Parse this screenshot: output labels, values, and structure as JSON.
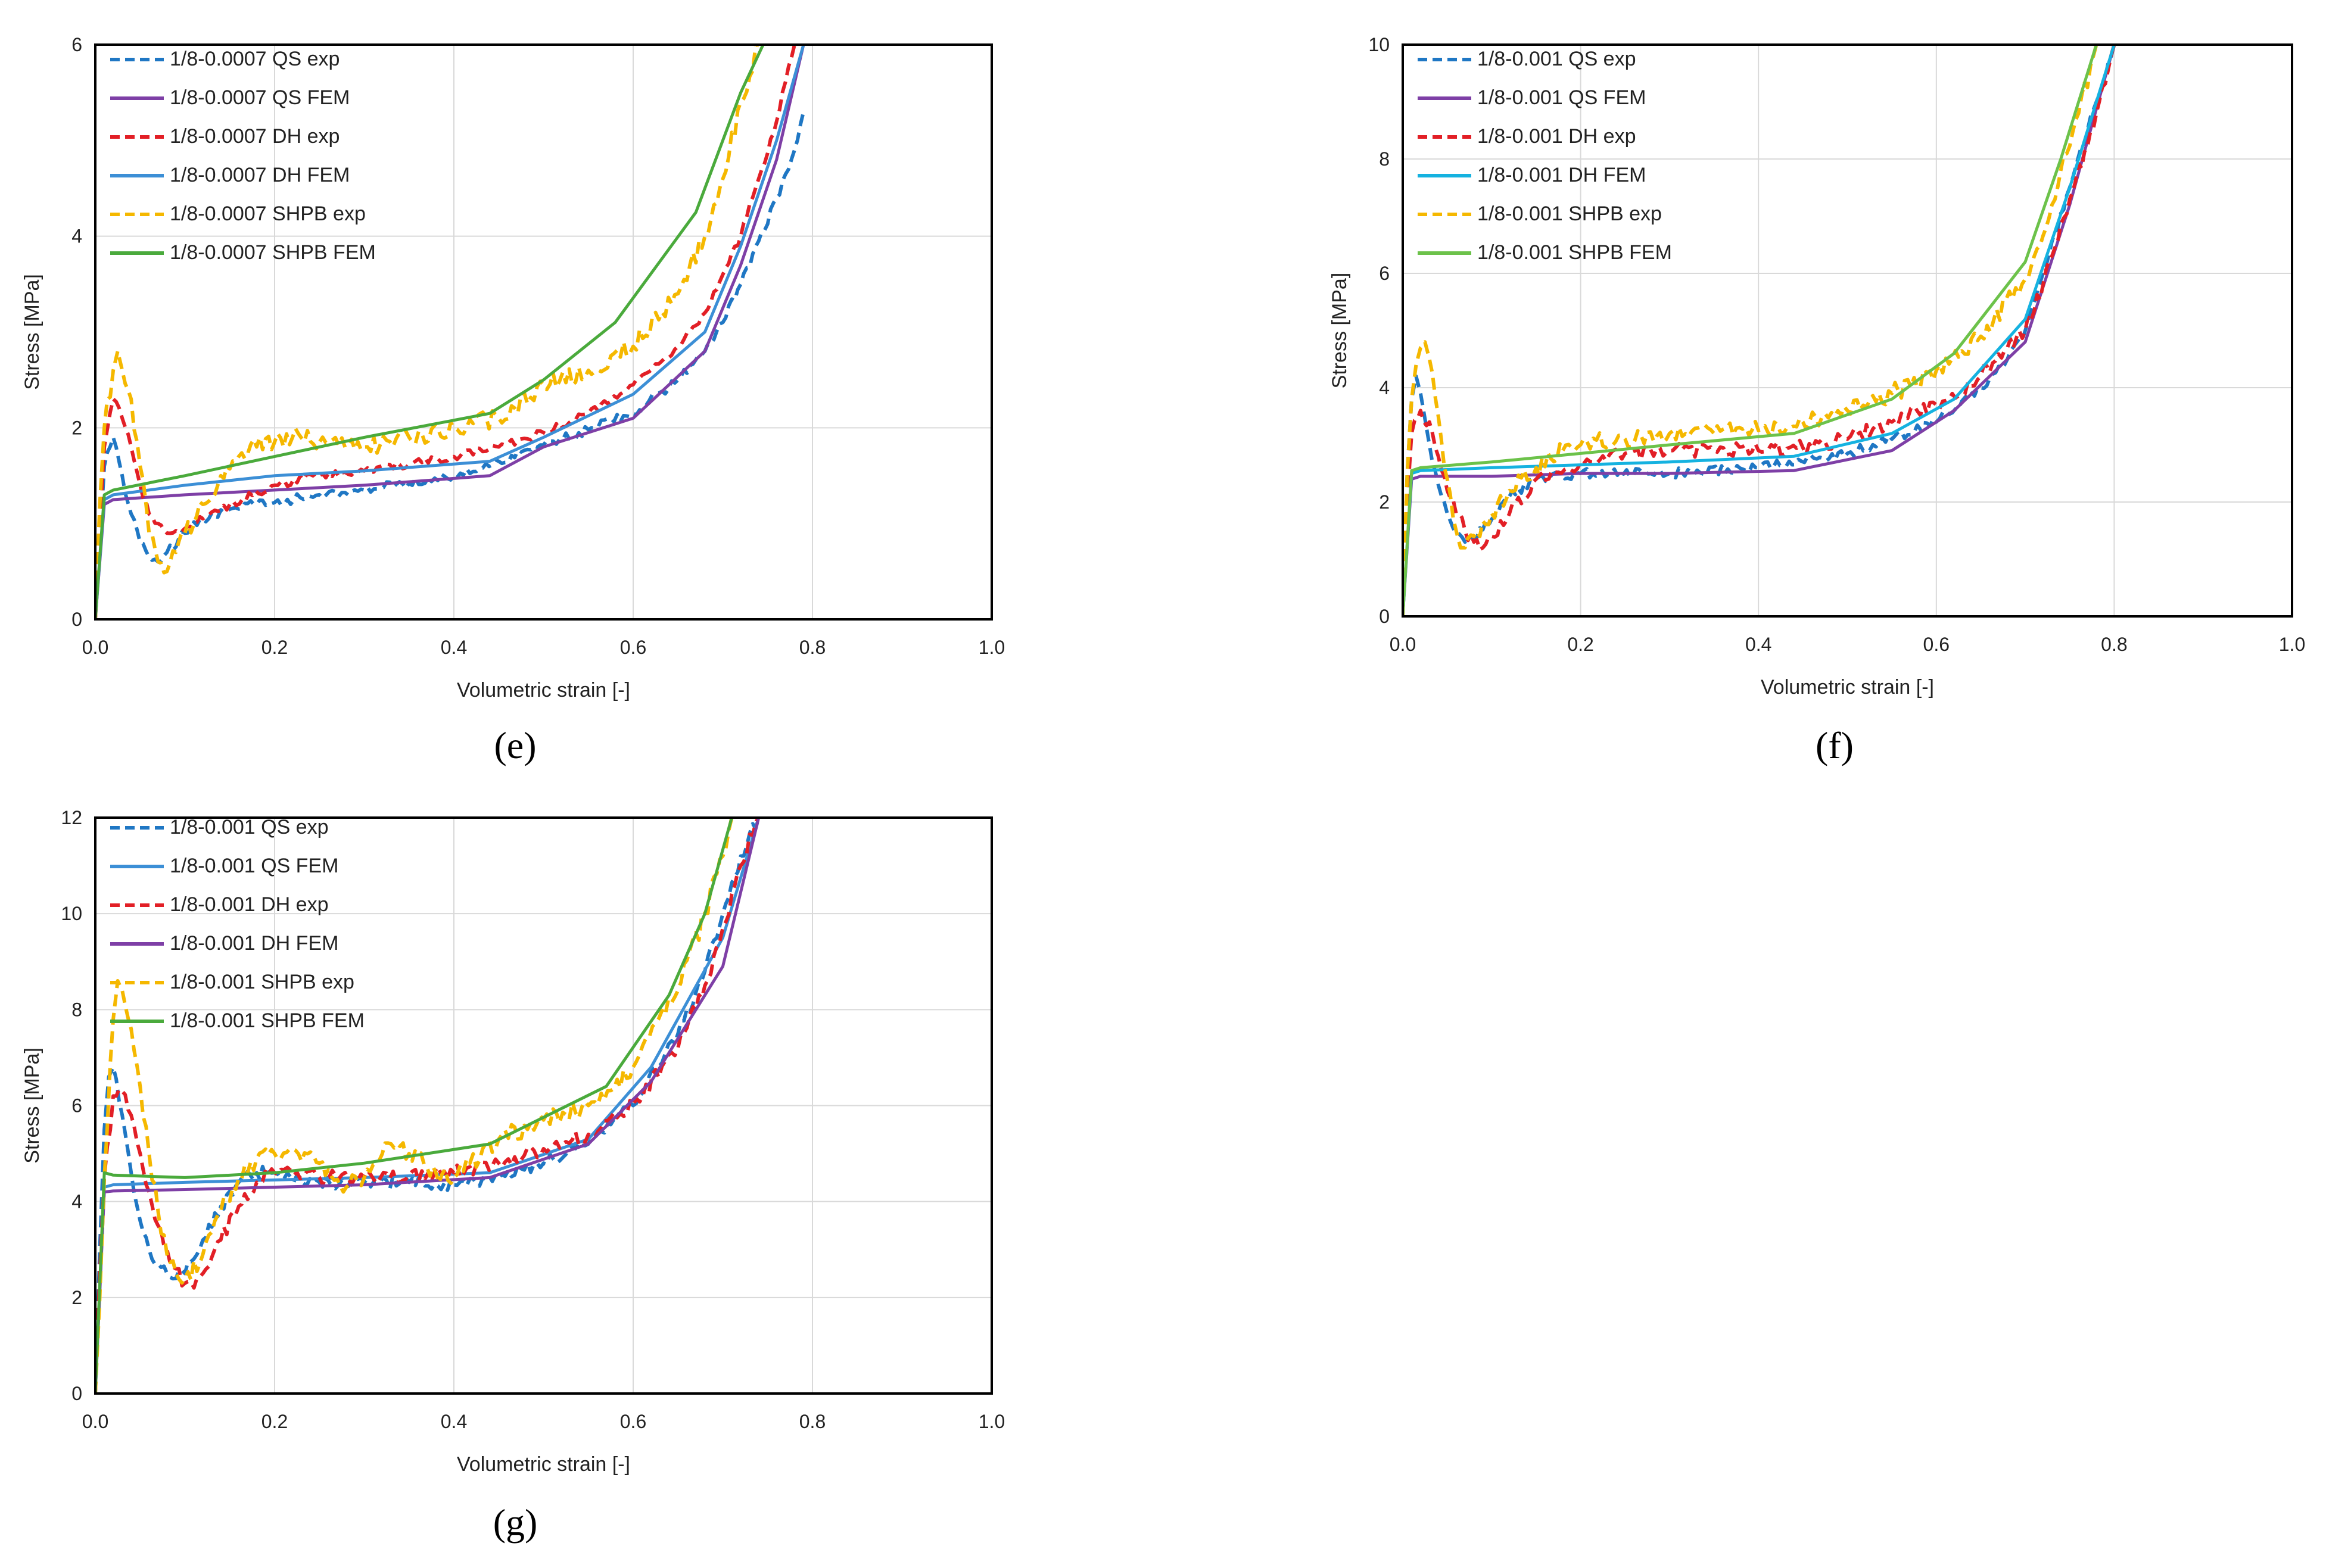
{
  "chart_data": [
    {
      "panel": "(e)",
      "type": "line",
      "xlabel": "Volumetric strain [-]",
      "ylabel": "Stress [MPa]",
      "xlim": [
        0,
        1.0
      ],
      "ylim": [
        0,
        6
      ],
      "xticks": [
        "0.0",
        "0.2",
        "0.4",
        "0.6",
        "0.8",
        "1.0"
      ],
      "yticks": [
        "0",
        "2",
        "4",
        "6"
      ],
      "series": [
        {
          "name": "1/8-0.0007 QS exp",
          "color": "#1f77c4",
          "dash": "dashed",
          "noise": 0.05,
          "x": [
            0,
            0.005,
            0.01,
            0.02,
            0.03,
            0.04,
            0.05,
            0.06,
            0.07,
            0.08,
            0.1,
            0.12,
            0.15,
            0.18,
            0.2,
            0.25,
            0.3,
            0.35,
            0.4,
            0.45,
            0.5,
            0.55,
            0.6,
            0.65,
            0.68,
            0.7,
            0.72,
            0.74,
            0.76,
            0.78,
            0.79
          ],
          "y": [
            0,
            0.8,
            1.6,
            1.9,
            1.5,
            1.1,
            0.8,
            0.65,
            0.6,
            0.7,
            0.9,
            1.05,
            1.15,
            1.2,
            1.22,
            1.3,
            1.35,
            1.42,
            1.5,
            1.65,
            1.82,
            1.98,
            2.15,
            2.5,
            2.8,
            3.1,
            3.5,
            3.95,
            4.4,
            4.9,
            5.3
          ]
        },
        {
          "name": "1/8-0.0007 QS FEM",
          "color": "#7e3fa6",
          "dash": "solid",
          "noise": 0,
          "x": [
            0,
            0.01,
            0.02,
            0.1,
            0.2,
            0.3,
            0.44,
            0.5,
            0.6,
            0.68,
            0.72,
            0.76,
            0.79
          ],
          "y": [
            0,
            1.2,
            1.25,
            1.3,
            1.35,
            1.4,
            1.5,
            1.8,
            2.1,
            2.8,
            3.7,
            4.8,
            6.0
          ]
        },
        {
          "name": "1/8-0.0007 DH exp",
          "color": "#e21f26",
          "dash": "dashed",
          "noise": 0.04,
          "x": [
            0,
            0.005,
            0.01,
            0.02,
            0.03,
            0.04,
            0.05,
            0.06,
            0.07,
            0.08,
            0.1,
            0.12,
            0.15,
            0.2,
            0.25,
            0.3,
            0.35,
            0.4,
            0.45,
            0.5,
            0.55,
            0.6,
            0.65,
            0.68,
            0.7,
            0.72,
            0.74,
            0.76,
            0.78
          ],
          "y": [
            0,
            1.0,
            1.8,
            2.3,
            2.1,
            1.8,
            1.4,
            1.1,
            1.0,
            0.9,
            0.95,
            1.05,
            1.2,
            1.4,
            1.5,
            1.55,
            1.62,
            1.7,
            1.8,
            1.95,
            2.15,
            2.45,
            2.85,
            3.2,
            3.6,
            4.0,
            4.6,
            5.2,
            6.0
          ]
        },
        {
          "name": "1/8-0.0007 DH FEM",
          "color": "#3c8fd6",
          "dash": "solid",
          "noise": 0,
          "x": [
            0,
            0.01,
            0.02,
            0.1,
            0.2,
            0.3,
            0.44,
            0.5,
            0.6,
            0.68,
            0.72,
            0.76,
            0.79
          ],
          "y": [
            0,
            1.25,
            1.3,
            1.4,
            1.5,
            1.55,
            1.65,
            1.9,
            2.35,
            3.0,
            3.9,
            5.0,
            6.0
          ]
        },
        {
          "name": "1/8-0.0007 SHPB exp",
          "color": "#f5b800",
          "dash": "dashed",
          "noise": 0.1,
          "x": [
            0,
            0.005,
            0.01,
            0.02,
            0.025,
            0.03,
            0.04,
            0.05,
            0.06,
            0.07,
            0.08,
            0.09,
            0.1,
            0.12,
            0.14,
            0.16,
            0.18,
            0.2,
            0.22,
            0.25,
            0.3,
            0.35,
            0.4,
            0.45,
            0.5,
            0.55,
            0.6,
            0.65,
            0.68,
            0.7,
            0.72,
            0.74
          ],
          "y": [
            0,
            1.2,
            2.0,
            2.6,
            2.8,
            2.6,
            2.3,
            1.6,
            0.9,
            0.6,
            0.5,
            0.7,
            0.9,
            1.2,
            1.5,
            1.7,
            1.8,
            1.85,
            1.9,
            1.85,
            1.8,
            1.9,
            2.0,
            2.1,
            2.45,
            2.6,
            2.85,
            3.4,
            4.0,
            4.6,
            5.4,
            6.0
          ]
        },
        {
          "name": "1/8-0.0007 SHPB FEM",
          "color": "#4aaa3c",
          "dash": "solid",
          "noise": 0,
          "x": [
            0,
            0.01,
            0.02,
            0.1,
            0.2,
            0.3,
            0.44,
            0.5,
            0.58,
            0.67,
            0.72,
            0.745
          ],
          "y": [
            0,
            1.3,
            1.35,
            1.5,
            1.7,
            1.9,
            2.15,
            2.5,
            3.1,
            4.25,
            5.5,
            6.0
          ]
        }
      ]
    },
    {
      "panel": "(f)",
      "type": "line",
      "xlabel": "Volumetric strain [-]",
      "ylabel": "Stress [MPa]",
      "xlim": [
        0,
        1.0
      ],
      "ylim": [
        0,
        10
      ],
      "xticks": [
        "0.0",
        "0.2",
        "0.4",
        "0.6",
        "0.8",
        "1.0"
      ],
      "yticks": [
        "0",
        "2",
        "4",
        "6",
        "8",
        "10"
      ],
      "series": [
        {
          "name": "1/8-0.001 QS exp",
          "color": "#1f77c4",
          "dash": "dashed",
          "noise": 0.05,
          "x": [
            0,
            0.005,
            0.01,
            0.015,
            0.02,
            0.03,
            0.04,
            0.05,
            0.06,
            0.07,
            0.08,
            0.1,
            0.12,
            0.15,
            0.2,
            0.3,
            0.4,
            0.5,
            0.55,
            0.6,
            0.65,
            0.68,
            0.7,
            0.72,
            0.75,
            0.78,
            0.8
          ],
          "y": [
            0,
            2.5,
            3.8,
            4.2,
            3.9,
            3.0,
            2.3,
            1.8,
            1.45,
            1.3,
            1.35,
            1.7,
            2.1,
            2.4,
            2.5,
            2.5,
            2.6,
            2.85,
            3.1,
            3.4,
            4.0,
            4.5,
            5.0,
            6.0,
            7.5,
            9.0,
            10.0
          ]
        },
        {
          "name": "1/8-0.001 QS FEM",
          "color": "#7e3fa6",
          "dash": "solid",
          "noise": 0,
          "x": [
            0,
            0.01,
            0.02,
            0.1,
            0.2,
            0.3,
            0.44,
            0.55,
            0.62,
            0.7,
            0.75,
            0.8
          ],
          "y": [
            0,
            2.4,
            2.45,
            2.45,
            2.5,
            2.5,
            2.55,
            2.9,
            3.6,
            4.8,
            7.2,
            10.0
          ]
        },
        {
          "name": "1/8-0.001 DH exp",
          "color": "#e21f26",
          "dash": "dashed",
          "noise": 0.08,
          "x": [
            0,
            0.005,
            0.01,
            0.02,
            0.03,
            0.04,
            0.05,
            0.06,
            0.07,
            0.08,
            0.09,
            0.1,
            0.12,
            0.15,
            0.2,
            0.25,
            0.3,
            0.35,
            0.4,
            0.45,
            0.5,
            0.55,
            0.6,
            0.65,
            0.68,
            0.7,
            0.72,
            0.75,
            0.78,
            0.8
          ],
          "y": [
            0,
            2.0,
            3.2,
            3.6,
            3.4,
            2.8,
            2.2,
            1.8,
            1.5,
            1.3,
            1.2,
            1.4,
            1.8,
            2.4,
            2.7,
            2.85,
            2.9,
            2.9,
            2.9,
            2.95,
            3.1,
            3.4,
            3.7,
            4.2,
            4.7,
            5.0,
            5.8,
            7.3,
            8.8,
            10.0
          ]
        },
        {
          "name": "1/8-0.001 DH FEM",
          "color": "#15b2e0",
          "dash": "solid",
          "noise": 0,
          "x": [
            0,
            0.01,
            0.02,
            0.1,
            0.2,
            0.3,
            0.44,
            0.55,
            0.62,
            0.7,
            0.75,
            0.8
          ],
          "y": [
            0,
            2.5,
            2.55,
            2.6,
            2.65,
            2.7,
            2.8,
            3.2,
            3.8,
            5.2,
            7.5,
            10.0
          ]
        },
        {
          "name": "1/8-0.001 SHPB exp",
          "color": "#f5b800",
          "dash": "dashed",
          "noise": 0.1,
          "x": [
            0,
            0.005,
            0.01,
            0.015,
            0.02,
            0.025,
            0.03,
            0.04,
            0.05,
            0.06,
            0.065,
            0.07,
            0.08,
            0.1,
            0.12,
            0.15,
            0.18,
            0.2,
            0.25,
            0.3,
            0.35,
            0.4,
            0.45,
            0.5,
            0.55,
            0.6,
            0.65,
            0.7,
            0.73,
            0.76,
            0.78
          ],
          "y": [
            0,
            2.5,
            3.8,
            4.4,
            4.7,
            4.8,
            4.5,
            3.5,
            2.4,
            1.5,
            1.2,
            1.2,
            1.4,
            1.8,
            2.2,
            2.6,
            2.9,
            3.0,
            3.1,
            3.2,
            3.2,
            3.25,
            3.4,
            3.6,
            3.9,
            4.3,
            4.9,
            5.9,
            7.2,
            8.8,
            10.0
          ]
        },
        {
          "name": "1/8-0.001 SHPB FEM",
          "color": "#6cc24a",
          "dash": "solid",
          "noise": 0,
          "x": [
            0,
            0.01,
            0.02,
            0.1,
            0.2,
            0.3,
            0.44,
            0.55,
            0.62,
            0.7,
            0.74,
            0.78
          ],
          "y": [
            0,
            2.55,
            2.6,
            2.7,
            2.85,
            3.0,
            3.2,
            3.8,
            4.6,
            6.2,
            8.0,
            10.0
          ]
        }
      ]
    },
    {
      "panel": "(g)",
      "type": "line",
      "xlabel": "Volumetric strain [-]",
      "ylabel": "Stress [MPa]",
      "xlim": [
        0,
        1.0
      ],
      "ylim": [
        0,
        12
      ],
      "xticks": [
        "0.0",
        "0.2",
        "0.4",
        "0.6",
        "0.8",
        "1.0"
      ],
      "yticks": [
        "0",
        "2",
        "4",
        "6",
        "8",
        "10",
        "12"
      ],
      "series": [
        {
          "name": "1/8-0.001 QS exp",
          "color": "#1f77c4",
          "dash": "dashed",
          "noise": 0.07,
          "x": [
            0,
            0.005,
            0.01,
            0.015,
            0.02,
            0.03,
            0.04,
            0.05,
            0.06,
            0.07,
            0.08,
            0.09,
            0.1,
            0.12,
            0.14,
            0.16,
            0.18,
            0.2,
            0.25,
            0.3,
            0.35,
            0.4,
            0.45,
            0.5,
            0.55,
            0.6,
            0.65,
            0.68,
            0.7,
            0.72,
            0.74
          ],
          "y": [
            0,
            3.0,
            5.5,
            6.6,
            6.8,
            5.8,
            4.6,
            3.6,
            3.0,
            2.7,
            2.5,
            2.4,
            2.5,
            3.2,
            3.9,
            4.4,
            4.6,
            4.6,
            4.4,
            4.4,
            4.4,
            4.35,
            4.5,
            4.8,
            5.2,
            6.0,
            7.5,
            8.8,
            10.0,
            11.2,
            12.0
          ]
        },
        {
          "name": "1/8-0.001 QS FEM",
          "color": "#3c8fd6",
          "dash": "solid",
          "noise": 0,
          "x": [
            0,
            0.01,
            0.02,
            0.1,
            0.2,
            0.3,
            0.44,
            0.55,
            0.62,
            0.7,
            0.74
          ],
          "y": [
            0,
            4.3,
            4.35,
            4.4,
            4.45,
            4.5,
            4.6,
            5.3,
            6.8,
            9.5,
            12.0
          ]
        },
        {
          "name": "1/8-0.001 DH exp",
          "color": "#e21f26",
          "dash": "dashed",
          "noise": 0.08,
          "x": [
            0,
            0.005,
            0.01,
            0.02,
            0.03,
            0.04,
            0.05,
            0.06,
            0.07,
            0.08,
            0.09,
            0.1,
            0.11,
            0.12,
            0.14,
            0.16,
            0.18,
            0.2,
            0.25,
            0.3,
            0.35,
            0.4,
            0.45,
            0.5,
            0.55,
            0.6,
            0.65,
            0.68,
            0.7,
            0.72,
            0.74
          ],
          "y": [
            0,
            2.5,
            4.5,
            6.2,
            6.3,
            5.8,
            5.0,
            4.2,
            3.5,
            3.0,
            2.6,
            2.3,
            2.2,
            2.5,
            3.2,
            3.9,
            4.4,
            4.6,
            4.5,
            4.5,
            4.55,
            4.6,
            4.8,
            5.1,
            5.4,
            6.0,
            7.2,
            8.5,
            9.7,
            11.0,
            12.0
          ]
        },
        {
          "name": "1/8-0.001 DH FEM",
          "color": "#7e3fa6",
          "dash": "solid",
          "noise": 0,
          "x": [
            0,
            0.01,
            0.02,
            0.1,
            0.2,
            0.3,
            0.44,
            0.55,
            0.62,
            0.7,
            0.74
          ],
          "y": [
            0,
            4.2,
            4.22,
            4.25,
            4.3,
            4.35,
            4.5,
            5.2,
            6.5,
            8.9,
            12.0
          ]
        },
        {
          "name": "1/8-0.001 SHPB exp",
          "color": "#f5b800",
          "dash": "dashed",
          "noise": 0.1,
          "x": [
            0,
            0.005,
            0.01,
            0.02,
            0.025,
            0.03,
            0.04,
            0.05,
            0.06,
            0.07,
            0.08,
            0.09,
            0.1,
            0.12,
            0.14,
            0.16,
            0.18,
            0.2,
            0.22,
            0.25,
            0.28,
            0.3,
            0.33,
            0.35,
            0.38,
            0.4,
            0.45,
            0.5,
            0.55,
            0.6,
            0.65,
            0.68,
            0.7,
            0.71
          ],
          "y": [
            0,
            2.0,
            4.5,
            7.8,
            8.6,
            8.4,
            7.6,
            6.4,
            5.0,
            3.8,
            2.9,
            2.5,
            2.4,
            2.9,
            3.8,
            4.5,
            4.9,
            5.0,
            5.1,
            4.8,
            4.3,
            4.5,
            5.2,
            5.0,
            4.6,
            4.5,
            5.3,
            5.7,
            6.0,
            6.8,
            8.4,
            10.0,
            11.2,
            12.0
          ]
        },
        {
          "name": "1/8-0.001 SHPB FEM",
          "color": "#4aaa3c",
          "dash": "solid",
          "noise": 0,
          "x": [
            0,
            0.01,
            0.02,
            0.1,
            0.2,
            0.3,
            0.44,
            0.57,
            0.64,
            0.68,
            0.71
          ],
          "y": [
            0,
            4.6,
            4.55,
            4.5,
            4.6,
            4.8,
            5.2,
            6.4,
            8.3,
            10.0,
            12.0
          ]
        }
      ]
    }
  ]
}
